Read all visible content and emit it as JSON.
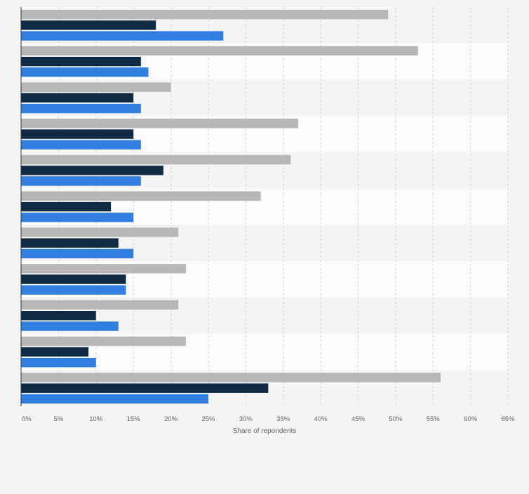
{
  "chart_data": {
    "type": "bar",
    "orientation": "horizontal",
    "categories": [
      "",
      "",
      "",
      "",
      "",
      "",
      "",
      "",
      "",
      "",
      ""
    ],
    "series": [
      {
        "color": "#b7b7b7",
        "values": [
          49,
          53,
          20,
          37,
          36,
          32,
          21,
          22,
          21,
          22,
          56
        ]
      },
      {
        "color": "#102a43",
        "values": [
          18,
          16,
          15,
          15,
          19,
          12,
          13,
          14,
          10,
          9,
          33
        ]
      },
      {
        "color": "#2f7ee0",
        "values": [
          27,
          17,
          16,
          16,
          16,
          15,
          15,
          14,
          13,
          10,
          25
        ]
      }
    ],
    "xlim": [
      0,
      65
    ],
    "xticks": [
      0,
      5,
      10,
      15,
      20,
      25,
      30,
      35,
      40,
      45,
      50,
      55,
      60,
      65
    ],
    "xtick_labels": [
      "0%",
      "5%",
      "10%",
      "15%",
      "20%",
      "25%",
      "30%",
      "35%",
      "40%",
      "45%",
      "50%",
      "55%",
      "60%",
      "65%"
    ],
    "xlabel": "Share of repondents",
    "grid": true,
    "legend": "none"
  }
}
